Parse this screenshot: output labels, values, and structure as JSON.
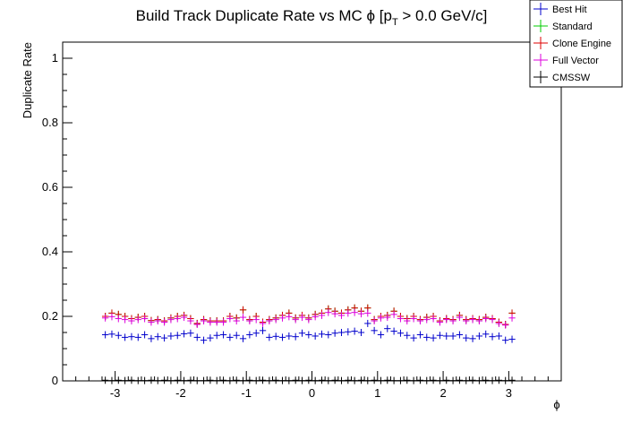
{
  "chart_data": {
    "type": "scatter",
    "title": "Build Track Duplicate Rate vs MC ϕ [p",
    "title_sub": "T",
    "title_tail": " > 0.0 GeV/c]",
    "xlabel": "ϕ",
    "ylabel": "Duplicate Rate",
    "xlim": [
      -3.8,
      3.8
    ],
    "ylim": [
      0,
      1.05
    ],
    "x_ticks": [
      "-3",
      "-2",
      "-1",
      "0",
      "1",
      "2",
      "3"
    ],
    "y_ticks": [
      "0",
      "0.2",
      "0.4",
      "0.6",
      "0.8",
      "1"
    ],
    "grid": false,
    "legend_position": "top-right",
    "bins": {
      "count": 63,
      "start": -3.15,
      "step": 0.1
    },
    "series": [
      {
        "name": "Best Hit",
        "color": "#0000cc",
        "values": [
          0.143,
          0.145,
          0.141,
          0.135,
          0.137,
          0.135,
          0.143,
          0.131,
          0.137,
          0.133,
          0.139,
          0.141,
          0.146,
          0.148,
          0.135,
          0.126,
          0.133,
          0.141,
          0.143,
          0.135,
          0.141,
          0.131,
          0.143,
          0.148,
          0.156,
          0.135,
          0.138,
          0.135,
          0.139,
          0.137,
          0.148,
          0.143,
          0.139,
          0.145,
          0.143,
          0.148,
          0.15,
          0.152,
          0.154,
          0.15,
          0.178,
          0.156,
          0.143,
          0.162,
          0.154,
          0.148,
          0.141,
          0.133,
          0.143,
          0.135,
          0.133,
          0.141,
          0.139,
          0.139,
          0.143,
          0.133,
          0.131,
          0.139,
          0.145,
          0.137,
          0.139,
          0.126,
          0.129
        ]
      },
      {
        "name": "Standard",
        "color": "#00cc00",
        "values": [
          0.2,
          0.21,
          0.206,
          0.2,
          0.193,
          0.197,
          0.2,
          0.187,
          0.19,
          0.186,
          0.195,
          0.2,
          0.203,
          0.193,
          0.178,
          0.19,
          0.186,
          0.186,
          0.186,
          0.2,
          0.195,
          0.22,
          0.19,
          0.2,
          0.182,
          0.19,
          0.195,
          0.203,
          0.21,
          0.195,
          0.203,
          0.195,
          0.206,
          0.21,
          0.223,
          0.216,
          0.21,
          0.22,
          0.226,
          0.216,
          0.226,
          0.19,
          0.2,
          0.203,
          0.216,
          0.2,
          0.193,
          0.2,
          0.19,
          0.197,
          0.2,
          0.186,
          0.193,
          0.19,
          0.203,
          0.19,
          0.193,
          0.19,
          0.197,
          0.193,
          0.182,
          0.175,
          0.21
        ]
      },
      {
        "name": "Clone Engine",
        "color": "#dd0000",
        "values": [
          0.2,
          0.21,
          0.206,
          0.2,
          0.193,
          0.197,
          0.2,
          0.187,
          0.19,
          0.186,
          0.195,
          0.2,
          0.203,
          0.193,
          0.178,
          0.19,
          0.186,
          0.186,
          0.186,
          0.2,
          0.195,
          0.22,
          0.19,
          0.2,
          0.182,
          0.19,
          0.195,
          0.203,
          0.21,
          0.195,
          0.203,
          0.195,
          0.206,
          0.21,
          0.223,
          0.216,
          0.21,
          0.22,
          0.226,
          0.216,
          0.226,
          0.19,
          0.2,
          0.203,
          0.216,
          0.2,
          0.193,
          0.2,
          0.19,
          0.197,
          0.2,
          0.186,
          0.193,
          0.19,
          0.203,
          0.19,
          0.193,
          0.19,
          0.197,
          0.193,
          0.182,
          0.175,
          0.21
        ]
      },
      {
        "name": "Full Vector",
        "color": "#dd00dd",
        "values": [
          0.195,
          0.199,
          0.193,
          0.19,
          0.186,
          0.19,
          0.193,
          0.182,
          0.186,
          0.182,
          0.19,
          0.193,
          0.197,
          0.186,
          0.175,
          0.186,
          0.182,
          0.182,
          0.182,
          0.193,
          0.186,
          0.197,
          0.186,
          0.19,
          0.178,
          0.186,
          0.19,
          0.195,
          0.199,
          0.19,
          0.197,
          0.19,
          0.199,
          0.203,
          0.212,
          0.208,
          0.203,
          0.21,
          0.212,
          0.208,
          0.21,
          0.186,
          0.195,
          0.197,
          0.206,
          0.193,
          0.186,
          0.193,
          0.186,
          0.19,
          0.193,
          0.182,
          0.19,
          0.186,
          0.197,
          0.186,
          0.19,
          0.186,
          0.193,
          0.19,
          0.178,
          0.173,
          0.195
        ]
      },
      {
        "name": "CMSSW",
        "color": "#000000",
        "values": [
          0.002,
          0.001,
          0.002,
          0.001,
          0.002,
          0.001,
          0.001,
          0.002,
          0.001,
          0.002,
          0.001,
          0.002,
          0.001,
          0.002,
          0.001,
          0.001,
          0.002,
          0.001,
          0.002,
          0.001,
          0.002,
          0.001,
          0.002,
          0.001,
          0.002,
          0.001,
          0.002,
          0.001,
          0.001,
          0.002,
          0.001,
          0.002,
          0.001,
          0.002,
          0.001,
          0.002,
          0.001,
          0.002,
          0.001,
          0.002,
          0.001,
          0.002,
          0.001,
          0.002,
          0.001,
          0.001,
          0.002,
          0.001,
          0.002,
          0.001,
          0.002,
          0.001,
          0.002,
          0.001,
          0.002,
          0.001,
          0.002,
          0.001,
          0.002,
          0.001,
          0.002,
          0.001,
          0.002
        ]
      }
    ]
  }
}
